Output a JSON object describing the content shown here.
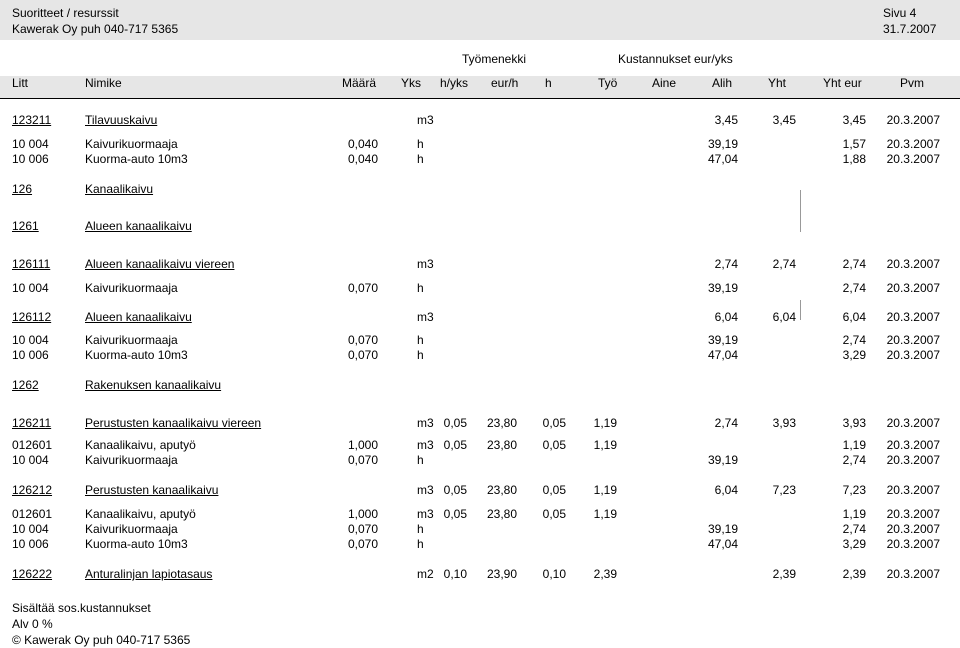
{
  "header": {
    "title": "Suoritteet / resurssit",
    "company": "Kawerak Oy puh 040-717 5365",
    "page": "Sivu 4",
    "date": "31.7.2007"
  },
  "groups": {
    "labour": "Työmenekki",
    "costs": "Kustannukset eur/yks"
  },
  "columns": [
    "Litt",
    "Nimike",
    "Määrä",
    "Yks",
    "h/yks",
    "eur/h",
    "h",
    "Työ",
    "Aine",
    "Alih",
    "Yht",
    "Yht eur",
    "Pvm"
  ],
  "rows": [
    {
      "litt": "123211",
      "nimike": "Tilavuuskaivu",
      "maara": "",
      "yks": "m3",
      "hyks": "",
      "eurh": "",
      "h": "",
      "tyo": "",
      "aine": "",
      "alih": "3,45",
      "yht": "3,45",
      "ytheur": "3,45",
      "pvm": "20.3.2007",
      "ul": true
    },
    {
      "litt": "10 004",
      "nimike": "Kaivurikuormaaja",
      "maara": "0,040",
      "yks": "h",
      "hyks": "",
      "eurh": "",
      "h": "",
      "tyo": "",
      "aine": "",
      "alih": "39,19",
      "yht": "",
      "ytheur": "1,57",
      "pvm": "20.3.2007",
      "ul": false
    },
    {
      "litt": "10 006",
      "nimike": "Kuorma-auto 10m3",
      "maara": "0,040",
      "yks": "h",
      "hyks": "",
      "eurh": "",
      "h": "",
      "tyo": "",
      "aine": "",
      "alih": "47,04",
      "yht": "",
      "ytheur": "1,88",
      "pvm": "20.3.2007",
      "ul": false
    },
    {
      "litt": "126",
      "nimike": "Kanaalikaivu",
      "maara": "",
      "yks": "",
      "hyks": "",
      "eurh": "",
      "h": "",
      "tyo": "",
      "aine": "",
      "alih": "",
      "yht": "",
      "ytheur": "",
      "pvm": "",
      "ul": true
    },
    {
      "litt": "1261",
      "nimike": "Alueen kanaalikaivu",
      "maara": "",
      "yks": "",
      "hyks": "",
      "eurh": "",
      "h": "",
      "tyo": "",
      "aine": "",
      "alih": "",
      "yht": "",
      "ytheur": "",
      "pvm": "",
      "ul": true
    },
    {
      "litt": "126111",
      "nimike": "Alueen kanaalikaivu viereen",
      "maara": "",
      "yks": "m3",
      "hyks": "",
      "eurh": "",
      "h": "",
      "tyo": "",
      "aine": "",
      "alih": "2,74",
      "yht": "2,74",
      "ytheur": "2,74",
      "pvm": "20.3.2007",
      "ul": true
    },
    {
      "litt": "10 004",
      "nimike": "Kaivurikuormaaja",
      "maara": "0,070",
      "yks": "h",
      "hyks": "",
      "eurh": "",
      "h": "",
      "tyo": "",
      "aine": "",
      "alih": "39,19",
      "yht": "",
      "ytheur": "2,74",
      "pvm": "20.3.2007",
      "ul": false
    },
    {
      "litt": "126112",
      "nimike": "Alueen kanaalikaivu",
      "maara": "",
      "yks": "m3",
      "hyks": "",
      "eurh": "",
      "h": "",
      "tyo": "",
      "aine": "",
      "alih": "6,04",
      "yht": "6,04",
      "ytheur": "6,04",
      "pvm": "20.3.2007",
      "ul": true
    },
    {
      "litt": "10 004",
      "nimike": "Kaivurikuormaaja",
      "maara": "0,070",
      "yks": "h",
      "hyks": "",
      "eurh": "",
      "h": "",
      "tyo": "",
      "aine": "",
      "alih": "39,19",
      "yht": "",
      "ytheur": "2,74",
      "pvm": "20.3.2007",
      "ul": false
    },
    {
      "litt": "10 006",
      "nimike": "Kuorma-auto 10m3",
      "maara": "0,070",
      "yks": "h",
      "hyks": "",
      "eurh": "",
      "h": "",
      "tyo": "",
      "aine": "",
      "alih": "47,04",
      "yht": "",
      "ytheur": "3,29",
      "pvm": "20.3.2007",
      "ul": false
    },
    {
      "litt": "1262",
      "nimike": "Rakenuksen kanaalikaivu",
      "maara": "",
      "yks": "",
      "hyks": "",
      "eurh": "",
      "h": "",
      "tyo": "",
      "aine": "",
      "alih": "",
      "yht": "",
      "ytheur": "",
      "pvm": "",
      "ul": true
    },
    {
      "litt": "126211",
      "nimike": "Perustusten kanaalikaivu viereen",
      "maara": "",
      "yks": "m3",
      "hyks": "0,05",
      "eurh": "23,80",
      "h": "0,05",
      "tyo": "1,19",
      "aine": "",
      "alih": "2,74",
      "yht": "3,93",
      "ytheur": "3,93",
      "pvm": "20.3.2007",
      "ul": true
    },
    {
      "litt": "012601",
      "nimike": "Kanaalikaivu, aputyö",
      "maara": "1,000",
      "yks": "m3",
      "hyks": "0,05",
      "eurh": "23,80",
      "h": "0,05",
      "tyo": "1,19",
      "aine": "",
      "alih": "",
      "yht": "",
      "ytheur": "1,19",
      "pvm": "20.3.2007",
      "ul": false
    },
    {
      "litt": "10 004",
      "nimike": "Kaivurikuormaaja",
      "maara": "0,070",
      "yks": "h",
      "hyks": "",
      "eurh": "",
      "h": "",
      "tyo": "",
      "aine": "",
      "alih": "39,19",
      "yht": "",
      "ytheur": "2,74",
      "pvm": "20.3.2007",
      "ul": false
    },
    {
      "litt": "126212",
      "nimike": "Perustusten kanaalikaivu",
      "maara": "",
      "yks": "m3",
      "hyks": "0,05",
      "eurh": "23,80",
      "h": "0,05",
      "tyo": "1,19",
      "aine": "",
      "alih": "6,04",
      "yht": "7,23",
      "ytheur": "7,23",
      "pvm": "20.3.2007",
      "ul": true
    },
    {
      "litt": "012601",
      "nimike": "Kanaalikaivu, aputyö",
      "maara": "1,000",
      "yks": "m3",
      "hyks": "0,05",
      "eurh": "23,80",
      "h": "0,05",
      "tyo": "1,19",
      "aine": "",
      "alih": "",
      "yht": "",
      "ytheur": "1,19",
      "pvm": "20.3.2007",
      "ul": false
    },
    {
      "litt": "10 004",
      "nimike": "Kaivurikuormaaja",
      "maara": "0,070",
      "yks": "h",
      "hyks": "",
      "eurh": "",
      "h": "",
      "tyo": "",
      "aine": "",
      "alih": "39,19",
      "yht": "",
      "ytheur": "2,74",
      "pvm": "20.3.2007",
      "ul": false
    },
    {
      "litt": "10 006",
      "nimike": "Kuorma-auto 10m3",
      "maara": "0,070",
      "yks": "h",
      "hyks": "",
      "eurh": "",
      "h": "",
      "tyo": "",
      "aine": "",
      "alih": "47,04",
      "yht": "",
      "ytheur": "3,29",
      "pvm": "20.3.2007",
      "ul": false
    },
    {
      "litt": "126222",
      "nimike": "Anturalinjan lapiotasaus",
      "maara": "",
      "yks": "m2",
      "hyks": "0,10",
      "eurh": "23,90",
      "h": "0,10",
      "tyo": "2,39",
      "aine": "",
      "alih": "",
      "yht": "2,39",
      "ytheur": "2,39",
      "pvm": "20.3.2007",
      "ul": true
    }
  ],
  "footer": {
    "line1": "Sisältää sos.kustannukset",
    "line2": "Alv 0 %",
    "line3": "© Kawerak Oy puh 040-717 5365"
  }
}
